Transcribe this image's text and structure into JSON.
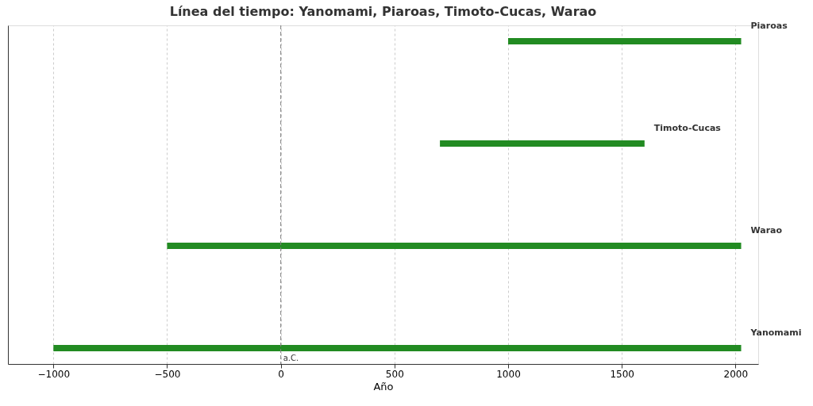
{
  "chart_data": {
    "type": "bar",
    "orientation": "horizontal",
    "title": "Línea del tiempo: Yanomami, Piaroas, Timoto-Cucas, Warao",
    "xlabel": "Año",
    "categories": [
      "Piaroas",
      "Timoto-Cucas",
      "Warao",
      "Yanomami"
    ],
    "series": [
      {
        "color": "#228b22",
        "base": [
          1000,
          700,
          -500,
          -1000
        ],
        "values": [
          1025,
          900,
          2525,
          3025
        ]
      }
    ],
    "xlim": [
      -1200,
      2100
    ],
    "xticks": [
      {
        "value": -1000,
        "label": "−1000"
      },
      {
        "value": -500,
        "label": "−500"
      },
      0,
      500,
      1000,
      1500,
      2000
    ],
    "ref_lines": [
      {
        "axis": "x",
        "value": 0,
        "label": "a.C.",
        "color": "#808080",
        "line_style": "dashed"
      }
    ],
    "grid": "x",
    "tick_labels": "x"
  }
}
